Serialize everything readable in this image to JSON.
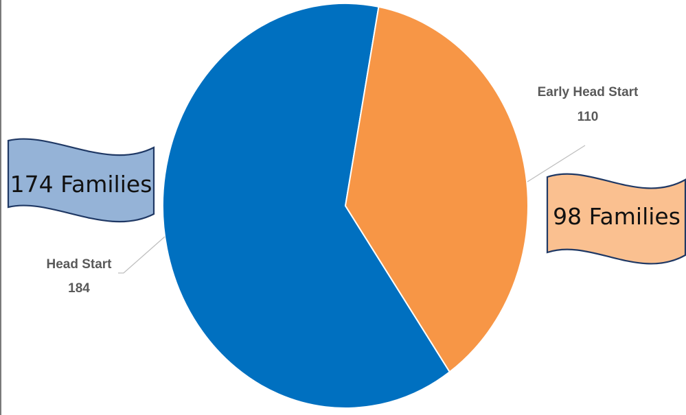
{
  "chart_data": {
    "type": "pie",
    "slices": [
      {
        "label": "Head Start",
        "value": 184,
        "color": "#0070C0"
      },
      {
        "label": "Early Head Start",
        "value": 110,
        "color": "#F79646"
      }
    ],
    "callouts": [
      {
        "text": "174 Families",
        "slice": "Head Start",
        "fill": "#95B3D7",
        "stroke": "#1F3864"
      },
      {
        "text": "98 Families",
        "slice": "Early Head Start",
        "fill": "#FAC090",
        "stroke": "#1F3864"
      }
    ]
  }
}
